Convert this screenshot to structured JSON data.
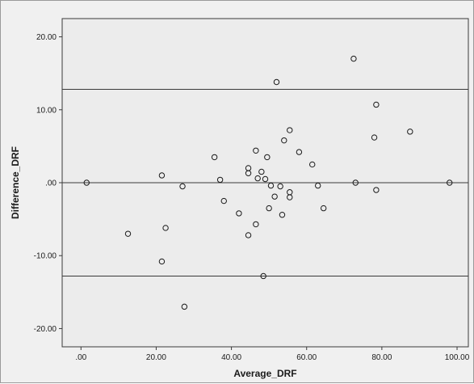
{
  "chart_data": {
    "type": "scatter",
    "title": "",
    "xlabel": "Average_DRF",
    "ylabel": "Difference_DRF",
    "xlim": [
      -5,
      103
    ],
    "ylim": [
      -22.5,
      22.5
    ],
    "x_ticks": [
      0,
      20,
      40,
      60,
      80,
      100
    ],
    "x_tick_labels": [
      ".00",
      "20.00",
      "40.00",
      "60.00",
      "80.00",
      "100.00"
    ],
    "y_ticks": [
      20,
      10,
      0,
      -10,
      -20
    ],
    "y_tick_labels": [
      "20.00",
      "10.00",
      ".00",
      "-10.00",
      "-20.00"
    ],
    "grid": false,
    "legend": "none",
    "reference_lines": [
      12.8,
      0.0,
      -12.8
    ],
    "colors": {
      "plot_background": "#ececec",
      "figure_background": "#f0f0f0",
      "marker_stroke": "#1a1a1a",
      "reference_line": "#3a3a3a"
    },
    "points": [
      {
        "x": 1.5,
        "y": 0.0
      },
      {
        "x": 12.5,
        "y": -7.0
      },
      {
        "x": 21.5,
        "y": 1.0
      },
      {
        "x": 21.5,
        "y": -10.8
      },
      {
        "x": 22.5,
        "y": -6.2
      },
      {
        "x": 27.0,
        "y": -0.5
      },
      {
        "x": 27.5,
        "y": -17.0
      },
      {
        "x": 35.5,
        "y": 3.5
      },
      {
        "x": 37.0,
        "y": 0.4
      },
      {
        "x": 38.0,
        "y": -2.5
      },
      {
        "x": 42.0,
        "y": -4.2
      },
      {
        "x": 44.5,
        "y": 2.0
      },
      {
        "x": 44.5,
        "y": 1.3
      },
      {
        "x": 44.5,
        "y": -7.2
      },
      {
        "x": 46.5,
        "y": 4.4
      },
      {
        "x": 46.5,
        "y": -5.7
      },
      {
        "x": 47.0,
        "y": 0.6
      },
      {
        "x": 48.0,
        "y": 1.5
      },
      {
        "x": 48.5,
        "y": -12.8
      },
      {
        "x": 49.0,
        "y": 0.5
      },
      {
        "x": 49.5,
        "y": 3.5
      },
      {
        "x": 50.0,
        "y": -3.5
      },
      {
        "x": 50.5,
        "y": -0.4
      },
      {
        "x": 51.5,
        "y": -1.9
      },
      {
        "x": 52.0,
        "y": 13.8
      },
      {
        "x": 53.0,
        "y": -0.5
      },
      {
        "x": 53.5,
        "y": -4.4
      },
      {
        "x": 54.0,
        "y": 5.8
      },
      {
        "x": 55.5,
        "y": 7.2
      },
      {
        "x": 55.5,
        "y": -1.3
      },
      {
        "x": 55.5,
        "y": -2.0
      },
      {
        "x": 58.0,
        "y": 4.2
      },
      {
        "x": 61.5,
        "y": 2.5
      },
      {
        "x": 63.0,
        "y": -0.4
      },
      {
        "x": 64.5,
        "y": -3.5
      },
      {
        "x": 72.5,
        "y": 17.0
      },
      {
        "x": 73.0,
        "y": 0.0
      },
      {
        "x": 78.0,
        "y": 6.2
      },
      {
        "x": 78.5,
        "y": 10.7
      },
      {
        "x": 78.5,
        "y": -1.0
      },
      {
        "x": 87.5,
        "y": 7.0
      },
      {
        "x": 98.0,
        "y": 0.0
      }
    ]
  }
}
